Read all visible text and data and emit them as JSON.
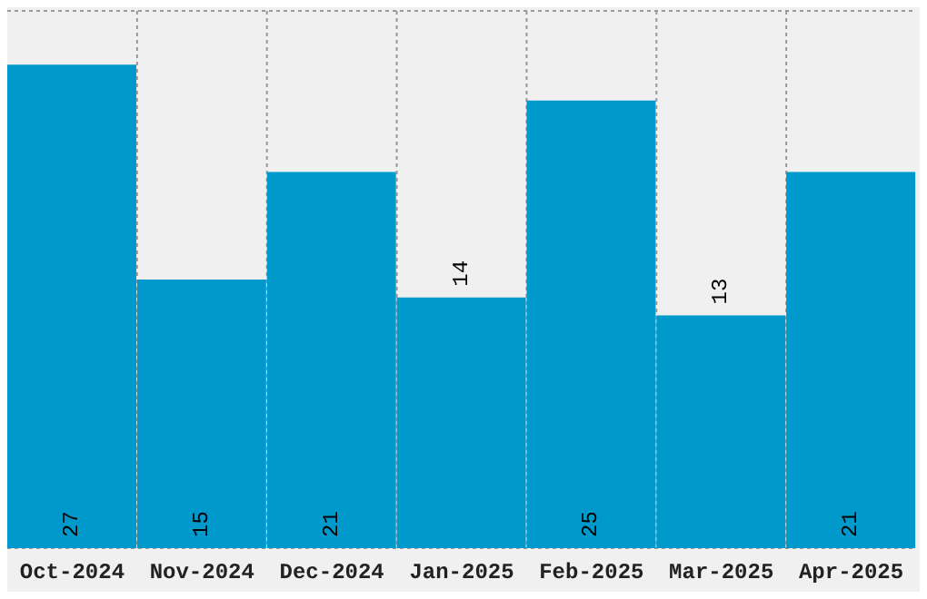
{
  "chart_data": {
    "type": "bar",
    "categories": [
      "Oct-2024",
      "Nov-2024",
      "Dec-2024",
      "Jan-2025",
      "Feb-2025",
      "Mar-2025",
      "Apr-2025"
    ],
    "values": [
      27,
      15,
      21,
      14,
      25,
      13,
      21
    ],
    "color": "#0099cc",
    "ylim": [
      0,
      30
    ],
    "tick_labels": "x",
    "grid": true,
    "data_labels": true
  }
}
